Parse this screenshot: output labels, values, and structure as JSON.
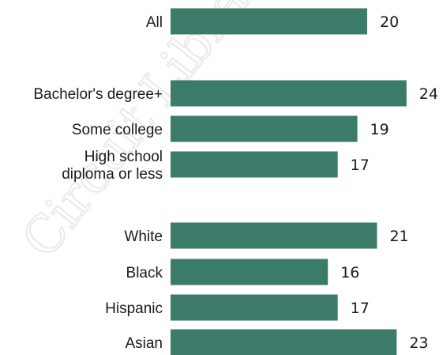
{
  "watermark": "Circuit Library",
  "chart_data": {
    "type": "bar",
    "orientation": "horizontal",
    "bar_color": "#3c7a6a",
    "title": "",
    "xlabel": "",
    "ylabel": "",
    "xlim": [
      0,
      30
    ],
    "grid": false,
    "legend": "none",
    "groups": [
      {
        "categories": [
          [
            "All"
          ]
        ],
        "values": [
          20
        ]
      },
      {
        "categories": [
          [
            "Bachelor's degree+"
          ],
          [
            "Some college"
          ],
          [
            "High school",
            "diploma or less"
          ]
        ],
        "values": [
          24,
          19,
          17
        ]
      },
      {
        "categories": [
          [
            "White"
          ],
          [
            "Black"
          ],
          [
            "Hispanic"
          ],
          [
            "Asian"
          ]
        ],
        "values": [
          21,
          16,
          17,
          23
        ]
      }
    ]
  }
}
